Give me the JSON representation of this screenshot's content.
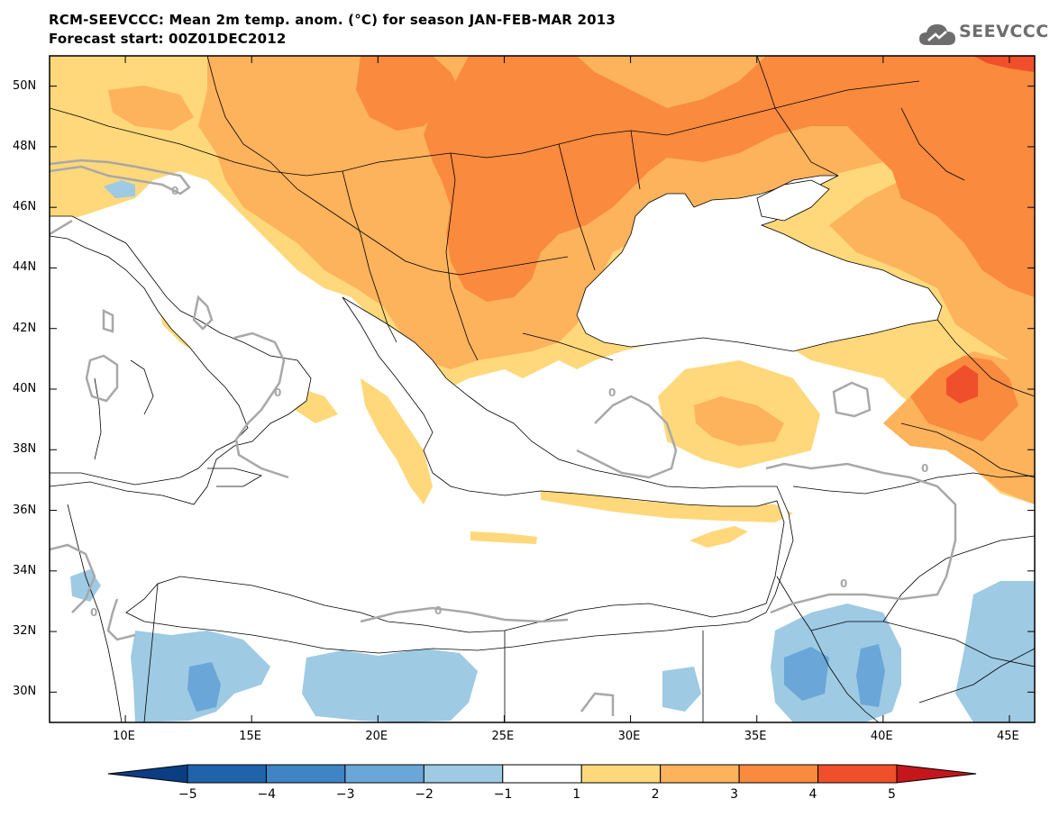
{
  "title": "RCM-SEEVCCC: Mean 2m temp. anom. (°C) for season JAN-FEB-MAR 2013",
  "subtitle": "Forecast start: 00Z01DEC2012",
  "logo": {
    "icon": "cloud-icon",
    "text": "SEEVCCC"
  },
  "map_extent": {
    "lon": [
      7,
      46
    ],
    "lat": [
      29,
      51
    ]
  },
  "lat_ticks": [
    "30N",
    "32N",
    "34N",
    "36N",
    "38N",
    "40N",
    "42N",
    "44N",
    "46N",
    "48N",
    "50N"
  ],
  "lon_ticks": [
    "10E",
    "15E",
    "20E",
    "25E",
    "30E",
    "35E",
    "40E",
    "45E"
  ],
  "contour_label": "0",
  "colorbar": {
    "labels": [
      "-5",
      "-4",
      "-3",
      "-2",
      "-1",
      "1",
      "2",
      "3",
      "4",
      "5"
    ],
    "colors": [
      "#0b3d83",
      "#1f63ab",
      "#3f84c4",
      "#6aa7d8",
      "#9ecae3",
      "#ffffff",
      "#fed87a",
      "#fdb25c",
      "#f98a3e",
      "#ef4f2a",
      "#c4161c"
    ]
  },
  "anomaly_regions": [
    {
      "name": "central-europe-warm",
      "class": "1 to 2",
      "color": "#fed87a"
    },
    {
      "name": "balkans-warm",
      "class": "2 to 3",
      "color": "#fdb25c"
    },
    {
      "name": "romania-bulgaria-warm",
      "class": "3 to 4",
      "color": "#f98a3e"
    },
    {
      "name": "ukraine-russia-warm",
      "class": "2 to 4",
      "color": "#fdb25c"
    },
    {
      "name": "eastern-turkey-warm",
      "class": "4 to 5",
      "color": "#ef4f2a"
    },
    {
      "name": "north-africa-cool",
      "class": "-2 to -1",
      "color": "#9ecae3"
    },
    {
      "name": "arabia-cool",
      "class": "-3 to -1",
      "color": "#6aa7d8"
    }
  ]
}
